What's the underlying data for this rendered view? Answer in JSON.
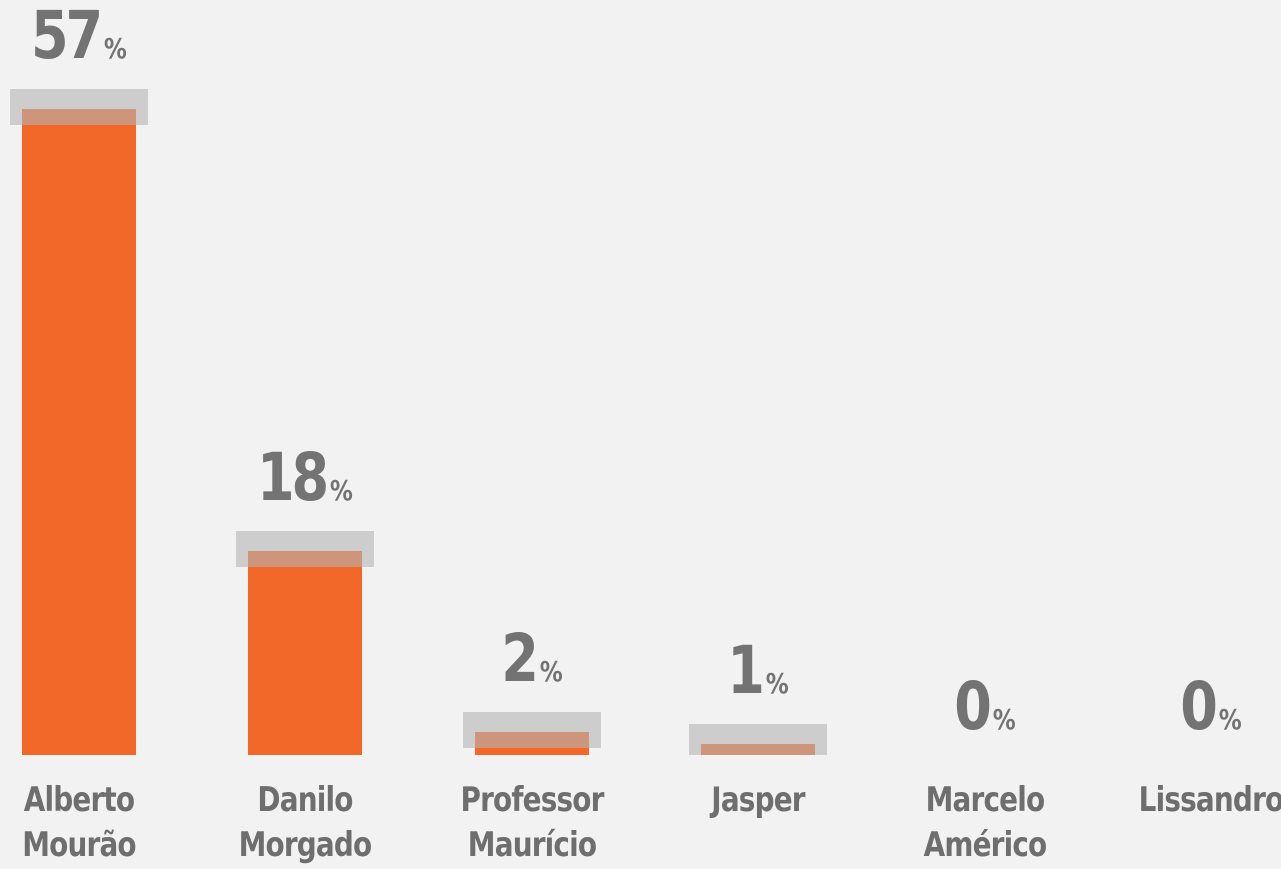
{
  "chart_data": {
    "type": "bar",
    "categories": [
      "Alberto Mourão",
      "Danilo Morgado",
      "Professor Maurício",
      "Jasper",
      "Marcelo Américo",
      "Lissandro"
    ],
    "values": [
      57,
      18,
      2,
      1,
      0,
      0
    ],
    "value_labels": [
      "57%",
      "18%",
      "2%",
      "1%",
      "0%",
      "0%"
    ],
    "color": "#f26829"
  }
}
